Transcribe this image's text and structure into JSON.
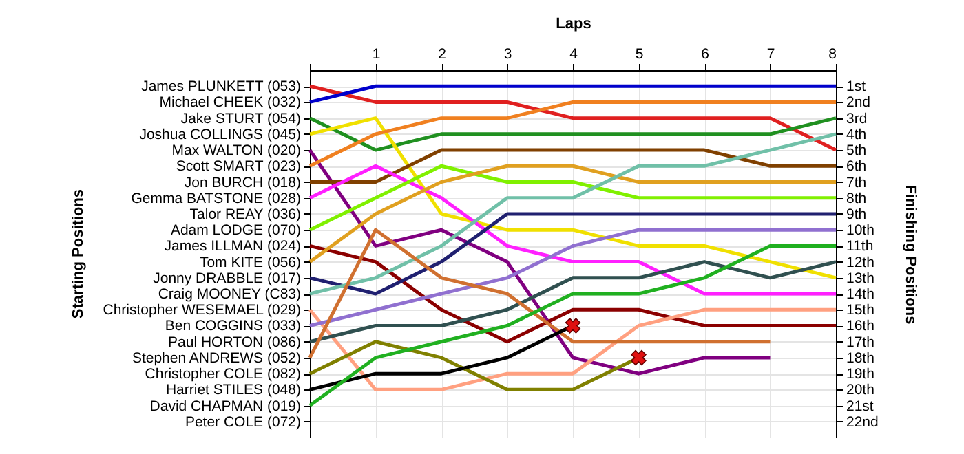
{
  "chart_data": {
    "type": "line",
    "xlabel": "Laps",
    "annotations": [
      "Starting Positions"
    ],
    "y2label": "Finishing Positions",
    "x": [
      0,
      1,
      2,
      3,
      4,
      5,
      6,
      7,
      8
    ],
    "xlim": [
      0,
      8
    ],
    "xticks": [
      {
        "value": 0,
        "label": null
      },
      1,
      2,
      3,
      4,
      5,
      6,
      7,
      8
    ],
    "y_categories": [
      "James PLUNKETT (053)",
      "Michael CHEEK (032)",
      "Jake STURT (054)",
      "Joshua COLLINGS (045)",
      "Max WALTON (020)",
      "Scott SMART (023)",
      "Jon BURCH (018)",
      "Gemma BATSTONE (028)",
      "Talor REAY (036)",
      "Adam LODGE (070)",
      "James ILLMAN (024)",
      "Tom KITE (056)",
      "Jonny DRABBLE (017)",
      "Craig MOONEY (C83)",
      "Christopher WESEMAEL (029)",
      "Ben COGGINS (033)",
      "Paul HORTON (086)",
      "Stephen ANDREWS (052)",
      "Christopher COLE (082)",
      "Harriet STILES (048)",
      "David CHAPMAN (019)",
      "Peter COLE (072)"
    ],
    "y2lim": [
      23,
      0
    ],
    "y2ticks": [
      {
        "value": 1,
        "label": "1st"
      },
      {
        "value": 2,
        "label": "2nd"
      },
      {
        "value": 3,
        "label": "3rd"
      },
      {
        "value": 4,
        "label": "4th"
      },
      {
        "value": 5,
        "label": "5th"
      },
      {
        "value": 6,
        "label": "6th"
      },
      {
        "value": 7,
        "label": "7th"
      },
      {
        "value": 8,
        "label": "8th"
      },
      {
        "value": 9,
        "label": "9th"
      },
      {
        "value": 10,
        "label": "10th"
      },
      {
        "value": 11,
        "label": "11th"
      },
      {
        "value": 12,
        "label": "12th"
      },
      {
        "value": 13,
        "label": "13th"
      },
      {
        "value": 14,
        "label": "14th"
      },
      {
        "value": 15,
        "label": "15th"
      },
      {
        "value": 16,
        "label": "16th"
      },
      {
        "value": 17,
        "label": "17th"
      },
      {
        "value": 18,
        "label": "18th"
      },
      {
        "value": 19,
        "label": "19th"
      },
      {
        "value": 20,
        "label": "20th"
      },
      {
        "value": 21,
        "label": "21st"
      },
      {
        "value": 22,
        "label": "22nd"
      }
    ],
    "grid": true,
    "marker": "none",
    "line_style": "solid",
    "series": [
      {
        "axis": "y2",
        "color": "#e02020",
        "values": [
          1,
          2,
          2,
          2,
          3,
          3,
          3,
          3,
          5
        ]
      },
      {
        "axis": "y2",
        "color": "#0000cc",
        "values": [
          2,
          1,
          1,
          1,
          1,
          1,
          1,
          1,
          1
        ]
      },
      {
        "axis": "y2",
        "color": "#209020",
        "values": [
          3,
          5,
          4,
          4,
          4,
          4,
          4,
          4,
          3
        ]
      },
      {
        "axis": "y2",
        "color": "#f0e000",
        "values": [
          4,
          3,
          9,
          10,
          10,
          11,
          11,
          12,
          13
        ]
      },
      {
        "axis": "y2",
        "color": "#800080",
        "values": [
          5,
          11,
          10,
          12,
          18,
          19,
          18,
          18,
          null
        ]
      },
      {
        "axis": "y2",
        "color": "#f08020",
        "values": [
          6,
          4,
          3,
          3,
          2,
          2,
          2,
          2,
          2
        ]
      },
      {
        "axis": "y2",
        "color": "#804000",
        "values": [
          7,
          7,
          5,
          5,
          5,
          5,
          5,
          6,
          6
        ]
      },
      {
        "axis": "y2",
        "color": "#ff20ff",
        "values": [
          8,
          6,
          8,
          11,
          12,
          12,
          14,
          14,
          14
        ]
      },
      {
        "axis": "y2",
        "color": "#80f000",
        "values": [
          10,
          8,
          6,
          7,
          7,
          8,
          8,
          8,
          8
        ]
      },
      {
        "axis": "y2",
        "color": "#8b0000",
        "values": [
          11,
          12,
          15,
          17,
          15,
          15,
          16,
          16,
          16
        ]
      },
      {
        "axis": "y2",
        "color": "#e0a020",
        "values": [
          12,
          9,
          7,
          6,
          6,
          7,
          7,
          7,
          7
        ]
      },
      {
        "axis": "y2",
        "color": "#202070",
        "values": [
          13,
          14,
          12,
          9,
          9,
          9,
          9,
          9,
          9
        ]
      },
      {
        "axis": "y2",
        "color": "#70c0a8",
        "values": [
          14,
          13,
          11,
          8,
          8,
          6,
          6,
          5,
          4
        ]
      },
      {
        "axis": "y2",
        "color": "#ffa080",
        "values": [
          15,
          20,
          20,
          19,
          19,
          16,
          15,
          15,
          15
        ]
      },
      {
        "axis": "y2",
        "color": "#9070d0",
        "values": [
          16,
          15,
          14,
          13,
          11,
          10,
          10,
          10,
          10
        ]
      },
      {
        "axis": "y2",
        "color": "#305050",
        "values": [
          17,
          16,
          16,
          15,
          13,
          13,
          12,
          13,
          12
        ]
      },
      {
        "axis": "y2",
        "color": "#d07030",
        "values": [
          18,
          10,
          13,
          14,
          17,
          17,
          17,
          17,
          null
        ]
      },
      {
        "axis": "y2",
        "color": "#808000",
        "values": [
          19,
          17,
          18,
          20,
          20,
          18,
          null,
          null,
          null
        ]
      },
      {
        "axis": "y2",
        "color": "#000000",
        "values": [
          20,
          19,
          19,
          18,
          16,
          null,
          null,
          null,
          null
        ]
      },
      {
        "axis": "y2",
        "color": "#20b020",
        "values": [
          21,
          18,
          17,
          16,
          14,
          14,
          13,
          11,
          11
        ]
      },
      {
        "axis": "y2",
        "type": "scatter",
        "marker": "cross",
        "color": "#e01010",
        "x": [
          4,
          5
        ],
        "values": [
          16,
          18
        ]
      }
    ]
  }
}
